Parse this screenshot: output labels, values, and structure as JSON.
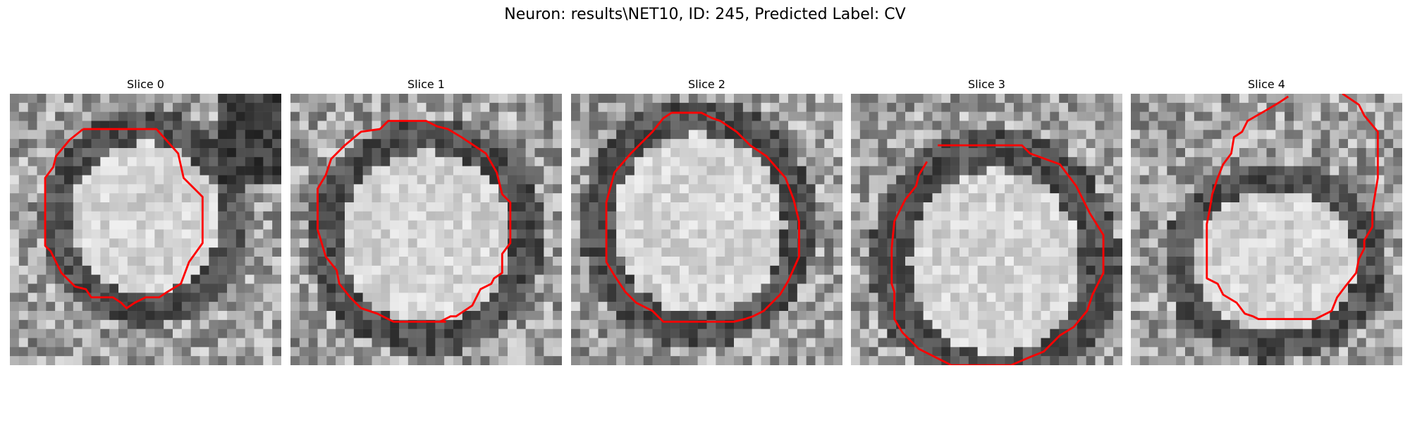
{
  "figure": {
    "title": "Neuron: results\\NET10, ID: 245, Predicted Label: CV"
  },
  "panels": [
    {
      "title": "Slice 0",
      "seed": 11,
      "hole": [
        0.5,
        0.46,
        0.32,
        0.33,
        0.2
      ],
      "darkNE": true,
      "contour": [
        [
          0.27,
          0.13
        ],
        [
          0.54,
          0.13
        ],
        [
          0.62,
          0.22
        ],
        [
          0.64,
          0.31
        ],
        [
          0.71,
          0.38
        ],
        [
          0.71,
          0.55
        ],
        [
          0.66,
          0.62
        ],
        [
          0.63,
          0.7
        ],
        [
          0.58,
          0.73
        ],
        [
          0.55,
          0.75
        ],
        [
          0.5,
          0.75
        ],
        [
          0.46,
          0.77
        ],
        [
          0.43,
          0.79
        ],
        [
          0.41,
          0.77
        ],
        [
          0.38,
          0.75
        ],
        [
          0.3,
          0.75
        ],
        [
          0.28,
          0.72
        ],
        [
          0.24,
          0.71
        ],
        [
          0.19,
          0.66
        ],
        [
          0.15,
          0.58
        ],
        [
          0.13,
          0.56
        ],
        [
          0.13,
          0.31
        ],
        [
          0.16,
          0.27
        ],
        [
          0.17,
          0.23
        ],
        [
          0.22,
          0.17
        ]
      ]
    },
    {
      "title": "Slice 1",
      "seed": 23,
      "hole": [
        0.5,
        0.53,
        0.37,
        0.37,
        0.18
      ],
      "darkNE": false,
      "contour": [
        [
          0.4,
          0.1
        ],
        [
          0.5,
          0.1
        ],
        [
          0.54,
          0.12
        ],
        [
          0.58,
          0.13
        ],
        [
          0.63,
          0.16
        ],
        [
          0.72,
          0.22
        ],
        [
          0.76,
          0.29
        ],
        [
          0.78,
          0.37
        ],
        [
          0.81,
          0.4
        ],
        [
          0.81,
          0.55
        ],
        [
          0.78,
          0.59
        ],
        [
          0.78,
          0.66
        ],
        [
          0.75,
          0.68
        ],
        [
          0.74,
          0.7
        ],
        [
          0.7,
          0.72
        ],
        [
          0.67,
          0.78
        ],
        [
          0.64,
          0.8
        ],
        [
          0.61,
          0.82
        ],
        [
          0.59,
          0.82
        ],
        [
          0.55,
          0.84
        ],
        [
          0.57,
          0.84
        ],
        [
          0.48,
          0.84
        ],
        [
          0.43,
          0.84
        ],
        [
          0.38,
          0.84
        ],
        [
          0.32,
          0.81
        ],
        [
          0.26,
          0.79
        ],
        [
          0.22,
          0.75
        ],
        [
          0.18,
          0.7
        ],
        [
          0.17,
          0.65
        ],
        [
          0.13,
          0.6
        ],
        [
          0.1,
          0.5
        ],
        [
          0.1,
          0.35
        ],
        [
          0.13,
          0.3
        ],
        [
          0.15,
          0.24
        ],
        [
          0.2,
          0.19
        ],
        [
          0.26,
          0.14
        ],
        [
          0.33,
          0.13
        ],
        [
          0.36,
          0.1
        ]
      ]
    },
    {
      "title": "Slice 2",
      "seed": 37,
      "hole": [
        0.47,
        0.48,
        0.37,
        0.39,
        0.18
      ],
      "darkNE": false,
      "contour": [
        [
          0.37,
          0.07
        ],
        [
          0.48,
          0.07
        ],
        [
          0.52,
          0.09
        ],
        [
          0.55,
          0.1
        ],
        [
          0.61,
          0.14
        ],
        [
          0.66,
          0.19
        ],
        [
          0.72,
          0.23
        ],
        [
          0.79,
          0.31
        ],
        [
          0.82,
          0.39
        ],
        [
          0.84,
          0.47
        ],
        [
          0.84,
          0.6
        ],
        [
          0.8,
          0.69
        ],
        [
          0.77,
          0.74
        ],
        [
          0.71,
          0.8
        ],
        [
          0.67,
          0.82
        ],
        [
          0.64,
          0.83
        ],
        [
          0.6,
          0.84
        ],
        [
          0.57,
          0.84
        ],
        [
          0.53,
          0.84
        ],
        [
          0.34,
          0.84
        ],
        [
          0.3,
          0.8
        ],
        [
          0.24,
          0.77
        ],
        [
          0.2,
          0.73
        ],
        [
          0.16,
          0.67
        ],
        [
          0.13,
          0.62
        ],
        [
          0.13,
          0.4
        ],
        [
          0.16,
          0.29
        ],
        [
          0.22,
          0.22
        ],
        [
          0.3,
          0.14
        ],
        [
          0.34,
          0.09
        ]
      ]
    },
    {
      "title": "Slice 3",
      "seed": 53,
      "hole": [
        0.53,
        0.62,
        0.37,
        0.4,
        0.24
      ],
      "darkNE": false,
      "contour": [
        [
          0.32,
          0.19
        ],
        [
          0.63,
          0.19
        ],
        [
          0.66,
          0.22
        ],
        [
          0.77,
          0.26
        ],
        [
          0.83,
          0.34
        ],
        [
          0.86,
          0.4
        ],
        [
          0.88,
          0.44
        ],
        [
          0.93,
          0.52
        ],
        [
          0.93,
          0.66
        ],
        [
          0.89,
          0.74
        ],
        [
          0.87,
          0.8
        ],
        [
          0.82,
          0.86
        ],
        [
          0.77,
          0.89
        ],
        [
          0.71,
          0.95
        ],
        [
          0.66,
          0.97
        ],
        [
          0.59,
          1.0
        ],
        [
          0.57,
          1.0
        ],
        [
          0.37,
          1.0
        ],
        [
          0.33,
          0.98
        ],
        [
          0.25,
          0.94
        ],
        [
          0.19,
          0.88
        ],
        [
          0.16,
          0.83
        ],
        [
          0.16,
          0.73
        ],
        [
          0.15,
          0.7
        ],
        [
          0.15,
          0.57
        ],
        [
          0.16,
          0.47
        ],
        [
          0.18,
          0.43
        ],
        [
          0.2,
          0.39
        ],
        [
          0.24,
          0.34
        ],
        [
          0.25,
          0.3
        ],
        [
          0.28,
          0.25
        ]
      ]
    },
    {
      "title": "Slice 4",
      "seed": 71,
      "hole": [
        0.53,
        0.62,
        0.35,
        0.31,
        0.18
      ],
      "darkNE": false,
      "contour": [
        [
          0.58,
          0.01
        ],
        [
          0.55,
          0.03
        ],
        [
          0.5,
          0.06
        ],
        [
          0.43,
          0.1
        ],
        [
          0.41,
          0.14
        ],
        [
          0.38,
          0.16
        ],
        [
          0.37,
          0.22
        ],
        [
          0.34,
          0.26
        ],
        [
          0.32,
          0.31
        ],
        [
          0.3,
          0.37
        ],
        [
          0.29,
          0.43
        ],
        [
          0.28,
          0.48
        ],
        [
          0.28,
          0.68
        ],
        [
          0.32,
          0.7
        ],
        [
          0.34,
          0.74
        ],
        [
          0.39,
          0.77
        ],
        [
          0.42,
          0.81
        ],
        [
          0.45,
          0.82
        ],
        [
          0.47,
          0.83
        ],
        [
          0.51,
          0.83
        ],
        [
          0.68,
          0.83
        ],
        [
          0.74,
          0.8
        ],
        [
          0.76,
          0.75
        ],
        [
          0.79,
          0.71
        ],
        [
          0.83,
          0.66
        ],
        [
          0.84,
          0.61
        ],
        [
          0.86,
          0.57
        ],
        [
          0.86,
          0.54
        ],
        [
          0.89,
          0.49
        ],
        [
          0.89,
          0.43
        ],
        [
          0.9,
          0.37
        ],
        [
          0.91,
          0.31
        ],
        [
          0.91,
          0.14
        ],
        [
          0.86,
          0.08
        ],
        [
          0.84,
          0.04
        ],
        [
          0.81,
          0.02
        ],
        [
          0.78,
          0.0
        ]
      ]
    }
  ],
  "colors": {
    "contour": "#ff0000"
  }
}
